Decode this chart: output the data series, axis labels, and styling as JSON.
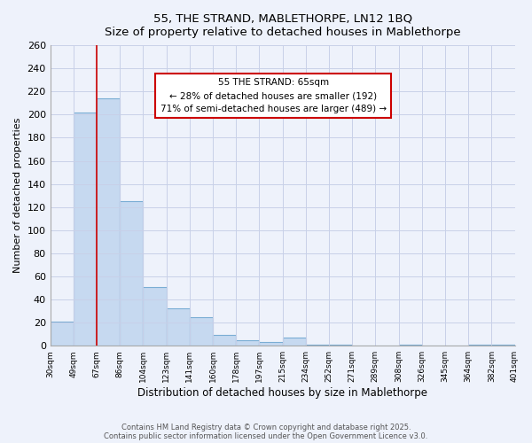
{
  "title1": "55, THE STRAND, MABLETHORPE, LN12 1BQ",
  "title2": "Size of property relative to detached houses in Mablethorpe",
  "xlabel": "Distribution of detached houses by size in Mablethorpe",
  "ylabel": "Number of detached properties",
  "bar_values": [
    21,
    202,
    214,
    125,
    51,
    32,
    25,
    9,
    5,
    3,
    7,
    1,
    1,
    0,
    0,
    1,
    0,
    0,
    1,
    1
  ],
  "tick_labels": [
    "30sqm",
    "49sqm",
    "67sqm",
    "86sqm",
    "104sqm",
    "123sqm",
    "141sqm",
    "160sqm",
    "178sqm",
    "197sqm",
    "215sqm",
    "234sqm",
    "252sqm",
    "271sqm",
    "289sqm",
    "308sqm",
    "326sqm",
    "345sqm",
    "364sqm",
    "382sqm",
    "401sqm"
  ],
  "bar_color": "#c6d9f0",
  "bar_edge_color": "#7aadd4",
  "property_line_x": 1.5,
  "property_line_label": "55 THE STRAND: 65sqm",
  "annotation_line1": "← 28% of detached houses are smaller (192)",
  "annotation_line2": "71% of semi-detached houses are larger (489) →",
  "annotation_box_color": "#ffffff",
  "annotation_box_edge_color": "#cc0000",
  "line_color": "#cc0000",
  "ylim": [
    0,
    260
  ],
  "yticks": [
    0,
    20,
    40,
    60,
    80,
    100,
    120,
    140,
    160,
    180,
    200,
    220,
    240,
    260
  ],
  "footer1": "Contains HM Land Registry data © Crown copyright and database right 2025.",
  "footer2": "Contains public sector information licensed under the Open Government Licence v3.0.",
  "bg_color": "#eef2fb"
}
